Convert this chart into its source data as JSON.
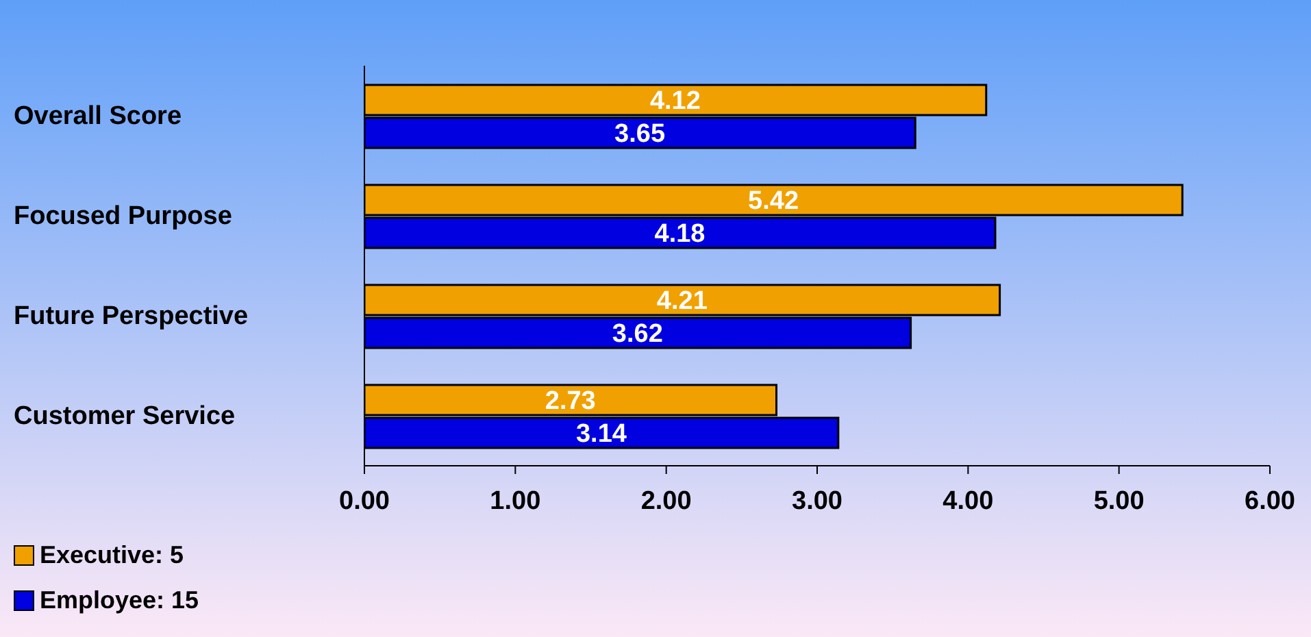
{
  "chart_data": {
    "type": "bar",
    "orientation": "horizontal",
    "categories": [
      "Overall Score",
      "Focused Purpose",
      "Future Perspective",
      "Customer Service"
    ],
    "series": [
      {
        "name": "Executive: 5",
        "color": "#f0a000",
        "values": [
          4.12,
          5.42,
          4.21,
          2.73
        ]
      },
      {
        "name": "Employee: 15",
        "color": "#0000e0",
        "values": [
          3.65,
          4.18,
          3.62,
          3.14
        ]
      }
    ],
    "xlim": [
      0,
      6
    ],
    "xticks": [
      {
        "value": 0,
        "label": "0.00"
      },
      {
        "value": 1,
        "label": "1.00"
      },
      {
        "value": 2,
        "label": "2.00"
      },
      {
        "value": 3,
        "label": "3.00"
      },
      {
        "value": 4,
        "label": "4.00"
      },
      {
        "value": 5,
        "label": "5.00"
      },
      {
        "value": 6,
        "label": "6.00"
      }
    ],
    "grid": false,
    "legend": "bottom left",
    "data_labels": true
  }
}
